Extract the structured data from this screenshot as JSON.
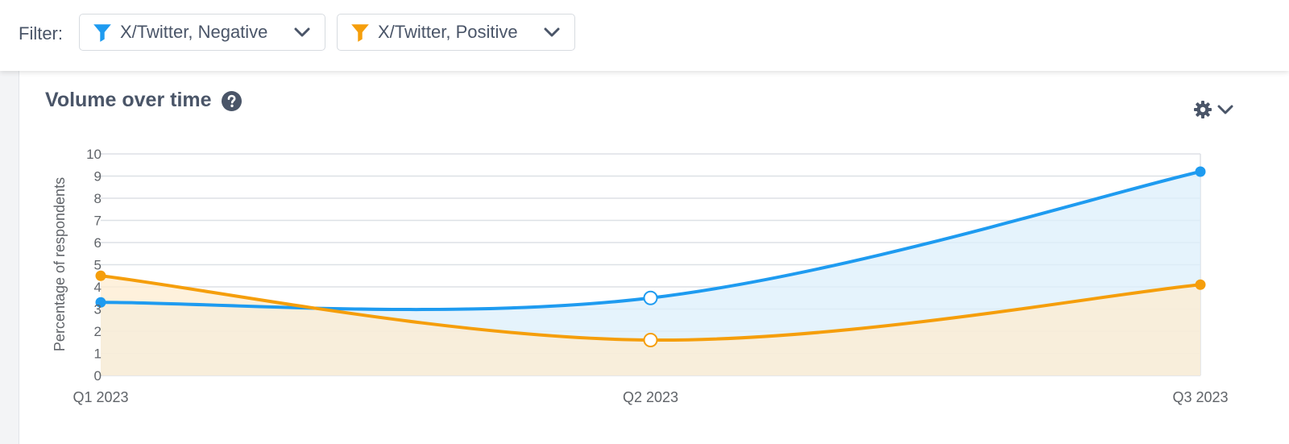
{
  "filter": {
    "label": "Filter:",
    "chips": [
      {
        "label": "X/Twitter, Negative",
        "color": "#1e9bf0"
      },
      {
        "label": "X/Twitter, Positive",
        "color": "#f59e0b"
      }
    ]
  },
  "card": {
    "title": "Volume over time",
    "help_icon": "question-circle-icon",
    "settings_icon": "gear-icon",
    "dropdown_icon": "chevron-down-icon"
  },
  "chart_data": {
    "type": "area",
    "x": [
      "Q1 2023",
      "Q2 2023",
      "Q3 2023"
    ],
    "ylabel": "Percentage of respondents",
    "xlabel": "",
    "ylim": [
      0,
      10
    ],
    "yticks": [
      0,
      1,
      2,
      3,
      4,
      5,
      6,
      7,
      8,
      9,
      10
    ],
    "grid": true,
    "series": [
      {
        "name": "X/Twitter, Negative",
        "color": "#1e9bf0",
        "fill": "#dceffb",
        "values": [
          3.3,
          3.5,
          9.2
        ]
      },
      {
        "name": "X/Twitter, Positive",
        "color": "#f59e0b",
        "fill": "#fdecd0",
        "values": [
          4.5,
          1.6,
          4.1
        ]
      }
    ]
  }
}
